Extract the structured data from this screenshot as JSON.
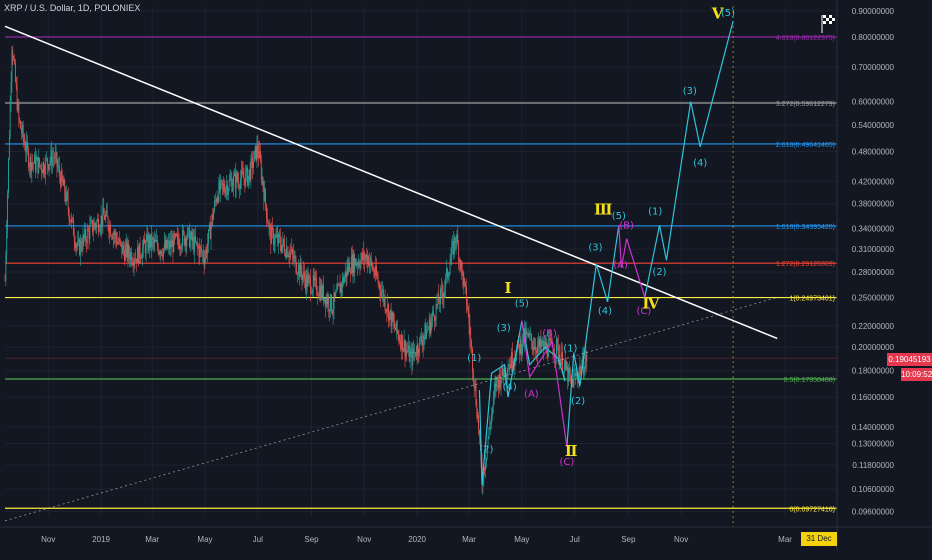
{
  "header": {
    "symbol_line": "XRP / U.S. Dollar, 1D, POLONIEX"
  },
  "colors": {
    "background": "#131722",
    "grid": "#1e2230",
    "candle_up": "#26a69a",
    "candle_down": "#ef5350",
    "wave_main": "#2ec4d9",
    "wave_corrective": "#cc33cc",
    "roman_label": "#f5e11b",
    "trendline": "#ffffff"
  },
  "current_price": {
    "price": "0.19045193",
    "countdown": "10:09:52"
  },
  "date_marker": "31 Dec '20",
  "chart_data": {
    "type": "candlestick",
    "y_scale": "log",
    "ylim": [
      0.094,
      0.92
    ],
    "y_ticks": [
      "0.90000000",
      "0.80000000",
      "0.70000000",
      "0.60000000",
      "0.54000000",
      "0.48000000",
      "0.42000000",
      "0.38000000",
      "0.34000000",
      "0.31000000",
      "0.28000000",
      "0.25000000",
      "0.22000000",
      "0.20000000",
      "0.18000000",
      "0.16000000",
      "0.14000000",
      "0.13000000",
      "0.11800000",
      "0.10600000",
      "0.09600000"
    ],
    "x_ticks": [
      "Nov",
      "2019",
      "Mar",
      "May",
      "Jul",
      "Sep",
      "Nov",
      "2020",
      "Mar",
      "May",
      "Jul",
      "Sep",
      "Nov",
      "Mar"
    ],
    "x_tick_months": [
      "2018-11",
      "2019-01",
      "2019-03",
      "2019-05",
      "2019-07",
      "2019-09",
      "2019-11",
      "2020-01",
      "2020-03",
      "2020-05",
      "2020-07",
      "2020-09",
      "2020-11",
      "2021-03"
    ],
    "xlim": [
      "2018-09-12",
      "2021-04-30"
    ],
    "fib_levels": [
      {
        "label": "4.618(0.80122375)",
        "value": 0.8012,
        "color": "#9c27b0"
      },
      {
        "label": "3.272(0.59612279)",
        "value": 0.5961,
        "color": "#9e9e9e"
      },
      {
        "label": "2.618(0.49641405)",
        "value": 0.4964,
        "color": "#2196f3"
      },
      {
        "label": "1.618(0.34395420)",
        "value": 0.344,
        "color": "#2196f3"
      },
      {
        "label": "1.272(0.29120309)",
        "value": 0.2912,
        "color": "#f44336"
      },
      {
        "label": "1(0.24973401)",
        "value": 0.2497,
        "color": "#ffeb3b"
      },
      {
        "label": "0.5(0.17350408)",
        "value": 0.1735,
        "color": "#4caf50"
      },
      {
        "label": "0(0.09727416)",
        "value": 0.0973,
        "color": "#ffeb3b"
      }
    ],
    "trendlines": [
      {
        "kind": "solid",
        "from": [
          "2018-09-12",
          0.84
        ],
        "to": [
          "2021-02-20",
          0.208
        ]
      },
      {
        "kind": "dotted",
        "from": [
          "2018-09-12",
          0.092
        ],
        "to": [
          "2021-02-20",
          0.25
        ]
      }
    ],
    "ohlc_waypoints": [
      [
        "2018-09-12",
        0.27
      ],
      [
        "2018-09-20",
        0.78
      ],
      [
        "2018-09-28",
        0.55
      ],
      [
        "2018-10-10",
        0.46
      ],
      [
        "2018-10-25",
        0.45
      ],
      [
        "2018-11-08",
        0.47
      ],
      [
        "2018-11-20",
        0.4
      ],
      [
        "2018-12-05",
        0.31
      ],
      [
        "2018-12-20",
        0.34
      ],
      [
        "2019-01-05",
        0.36
      ],
      [
        "2019-01-25",
        0.31
      ],
      [
        "2019-02-10",
        0.3
      ],
      [
        "2019-02-25",
        0.32
      ],
      [
        "2019-03-15",
        0.31
      ],
      [
        "2019-04-10",
        0.33
      ],
      [
        "2019-05-01",
        0.3
      ],
      [
        "2019-05-15",
        0.4
      ],
      [
        "2019-06-01",
        0.42
      ],
      [
        "2019-06-20",
        0.43
      ],
      [
        "2019-07-01",
        0.49
      ],
      [
        "2019-07-15",
        0.33
      ],
      [
        "2019-08-05",
        0.31
      ],
      [
        "2019-08-25",
        0.27
      ],
      [
        "2019-09-10",
        0.26
      ],
      [
        "2019-09-25",
        0.24
      ],
      [
        "2019-10-15",
        0.29
      ],
      [
        "2019-11-05",
        0.3
      ],
      [
        "2019-11-20",
        0.26
      ],
      [
        "2019-12-05",
        0.22
      ],
      [
        "2019-12-25",
        0.19
      ],
      [
        "2020-01-15",
        0.22
      ],
      [
        "2020-02-01",
        0.26
      ],
      [
        "2020-02-15",
        0.33
      ],
      [
        "2020-02-28",
        0.24
      ],
      [
        "2020-03-12",
        0.14
      ],
      [
        "2020-03-16",
        0.11
      ],
      [
        "2020-04-01",
        0.17
      ],
      [
        "2020-04-20",
        0.19
      ],
      [
        "2020-05-05",
        0.21
      ],
      [
        "2020-05-20",
        0.2
      ],
      [
        "2020-06-10",
        0.2
      ],
      [
        "2020-06-27",
        0.17
      ],
      [
        "2020-07-15",
        0.19
      ]
    ],
    "wave_labels": [
      {
        "text": "(1)",
        "x": "2020-03-07",
        "y": 0.188,
        "color": "#2ec4d9"
      },
      {
        "text": "(2)",
        "x": "2020-03-21",
        "y": 0.125,
        "color": "#2ec4d9"
      },
      {
        "text": "(3)",
        "x": "2020-04-10",
        "y": 0.215,
        "color": "#2ec4d9"
      },
      {
        "text": "(4)",
        "x": "2020-04-17",
        "y": 0.165,
        "color": "#2ec4d9"
      },
      {
        "text": "(5)",
        "x": "2020-05-01",
        "y": 0.24,
        "color": "#2ec4d9"
      },
      {
        "text": "(A)",
        "x": "2020-05-12",
        "y": 0.16,
        "color": "#cc33cc"
      },
      {
        "text": "(B)",
        "x": "2020-06-02",
        "y": 0.21,
        "color": "#cc33cc"
      },
      {
        "text": "(C)",
        "x": "2020-06-22",
        "y": 0.118,
        "color": "#cc33cc"
      },
      {
        "text": "(1)",
        "x": "2020-06-26",
        "y": 0.196,
        "color": "#2ec4d9"
      },
      {
        "text": "(2)",
        "x": "2020-07-05",
        "y": 0.155,
        "color": "#2ec4d9"
      },
      {
        "text": "(3)",
        "x": "2020-07-25",
        "y": 0.308,
        "color": "#2ec4d9"
      },
      {
        "text": "(4)",
        "x": "2020-08-05",
        "y": 0.232,
        "color": "#2ec4d9"
      },
      {
        "text": "(5)",
        "x": "2020-08-21",
        "y": 0.355,
        "color": "#2ec4d9"
      },
      {
        "text": "(A)",
        "x": "2020-08-23",
        "y": 0.285,
        "color": "#cc33cc"
      },
      {
        "text": "(B)",
        "x": "2020-08-30",
        "y": 0.34,
        "color": "#cc33cc"
      },
      {
        "text": "(C)",
        "x": "2020-09-19",
        "y": 0.232,
        "color": "#cc33cc"
      },
      {
        "text": "(1)",
        "x": "2020-10-02",
        "y": 0.362,
        "color": "#2ec4d9"
      },
      {
        "text": "(2)",
        "x": "2020-10-07",
        "y": 0.276,
        "color": "#2ec4d9"
      },
      {
        "text": "(3)",
        "x": "2020-11-11",
        "y": 0.62,
        "color": "#2ec4d9"
      },
      {
        "text": "(4)",
        "x": "2020-11-23",
        "y": 0.45,
        "color": "#2ec4d9"
      },
      {
        "text": "(5)",
        "x": "2020-12-25",
        "y": 0.88,
        "color": "#2ec4d9"
      }
    ],
    "roman_labels": [
      {
        "text": "Ⅰ",
        "x": "2020-04-15",
        "y": 0.255
      },
      {
        "text": "Ⅱ",
        "x": "2020-06-27",
        "y": 0.123
      },
      {
        "text": "Ⅲ",
        "x": "2020-08-03",
        "y": 0.362
      },
      {
        "text": "Ⅳ",
        "x": "2020-09-27",
        "y": 0.238
      },
      {
        "text": "Ⅴ",
        "x": "2020-12-13",
        "y": 0.87
      }
    ],
    "wave_path_main": [
      [
        "2020-03-13",
        0.165
      ],
      [
        "2020-03-16",
        0.108
      ],
      [
        "2020-03-27",
        0.178
      ],
      [
        "2020-04-11",
        0.185
      ],
      [
        "2020-04-15",
        0.16
      ],
      [
        "2020-05-01",
        0.225
      ],
      [
        "2020-05-10",
        0.185
      ],
      [
        "2020-05-28",
        0.2
      ],
      [
        "2020-06-12",
        0.19
      ],
      [
        "2020-06-20",
        0.172
      ]
    ],
    "wave_path_main_2": [
      [
        "2020-06-22",
        0.128
      ],
      [
        "2020-06-30",
        0.195
      ],
      [
        "2020-07-07",
        0.168
      ],
      [
        "2020-07-26",
        0.29
      ],
      [
        "2020-08-08",
        0.245
      ],
      [
        "2020-08-21",
        0.345
      ]
    ],
    "wave_path_corrective_1": [
      [
        "2020-05-01",
        0.225
      ],
      [
        "2020-05-10",
        0.175
      ],
      [
        "2020-06-05",
        0.205
      ],
      [
        "2020-06-22",
        0.128
      ]
    ],
    "wave_path_corrective_2": [
      [
        "2020-08-21",
        0.345
      ],
      [
        "2020-08-24",
        0.285
      ],
      [
        "2020-08-30",
        0.325
      ],
      [
        "2020-09-20",
        0.25
      ]
    ],
    "wave_path_projection": [
      [
        "2020-09-20",
        0.25
      ],
      [
        "2020-10-07",
        0.345
      ],
      [
        "2020-10-15",
        0.295
      ],
      [
        "2020-11-12",
        0.6
      ],
      [
        "2020-11-23",
        0.49
      ],
      [
        "2020-12-31",
        0.86
      ]
    ]
  }
}
